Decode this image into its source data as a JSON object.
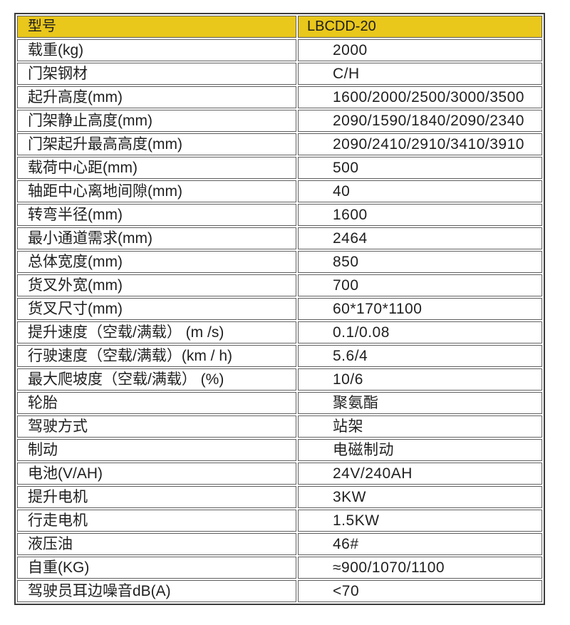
{
  "meta": {
    "doc_type": "product-specification-table",
    "language": "zh-CN"
  },
  "colors": {
    "header_background": "#e9c71b",
    "outer_border": "#3d3d3d",
    "cell_border": "#5f5f5f",
    "text": "#1f1f1f",
    "page_background": "#ffffff"
  },
  "table": {
    "header": {
      "label": "型号",
      "value": "LBCDD-20"
    },
    "rows": [
      {
        "label": "载重(kg)",
        "value": "2000"
      },
      {
        "label": "门架钢材",
        "value": "C/H"
      },
      {
        "label": "起升高度(mm)",
        "value": "1600/2000/2500/3000/3500"
      },
      {
        "label": "门架静止高度(mm)",
        "value": "2090/1590/1840/2090/2340"
      },
      {
        "label": "门架起升最高高度(mm)",
        "value": "2090/2410/2910/3410/3910"
      },
      {
        "label": "载荷中心距(mm)",
        "value": "500"
      },
      {
        "label": "轴距中心离地间隙(mm)",
        "value": "40"
      },
      {
        "label": "转弯半径(mm)",
        "value": "1600"
      },
      {
        "label": "最小通道需求(mm)",
        "value": "2464"
      },
      {
        "label": "总体宽度(mm)",
        "value": "850"
      },
      {
        "label": "货叉外宽(mm)",
        "value": "700"
      },
      {
        "label": "货叉尺寸(mm)",
        "value": "60*170*1100"
      },
      {
        "label": "提升速度（空载/满载） (m /s)",
        "value": "0.1/0.08"
      },
      {
        "label": "行驶速度（空载/满载）(km / h)",
        "value": "5.6/4"
      },
      {
        "label": "最大爬坡度（空载/满载） (%)",
        "value": "10/6"
      },
      {
        "label": "轮胎",
        "value": "聚氨酯"
      },
      {
        "label": "驾驶方式",
        "value": "站架"
      },
      {
        "label": "制动",
        "value": "电磁制动"
      },
      {
        "label": "电池(V/AH)",
        "value": "24V/240AH"
      },
      {
        "label": "提升电机",
        "value": "3KW"
      },
      {
        "label": "行走电机",
        "value": "1.5KW"
      },
      {
        "label": "液压油",
        "value": "46#"
      },
      {
        "label": "自重(KG)",
        "value": "≈900/1070/1100"
      },
      {
        "label": "驾驶员耳边噪音dB(A)",
        "value": "<70"
      }
    ]
  }
}
